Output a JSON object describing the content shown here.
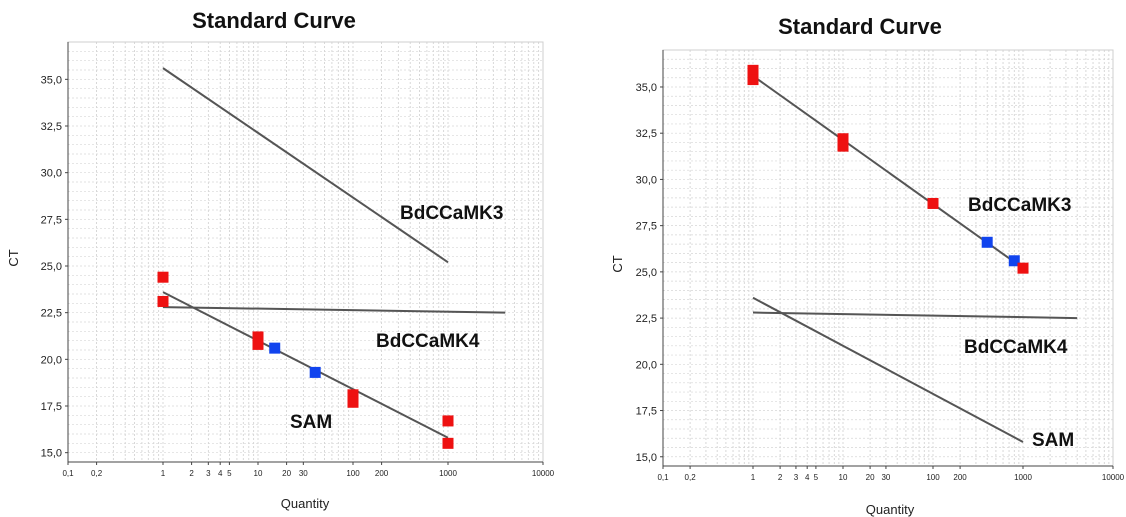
{
  "charts": [
    {
      "title": "Standard Curve",
      "xlabel": "Quantity",
      "ylabel": "CT",
      "x_ticks": [
        "0,1",
        "0,2",
        "1",
        "2",
        "3",
        "4",
        "5",
        "10",
        "20",
        "30",
        "100",
        "200",
        "1000",
        "10000"
      ],
      "y_ticks": [
        "15,0",
        "17,5",
        "20,0",
        "22,5",
        "25,0",
        "27,5",
        "30,0",
        "32,5",
        "35,0"
      ],
      "series_labels": [
        "BdCCaMK3",
        "BdCCaMK4",
        "SAM"
      ]
    },
    {
      "title": "Standard Curve",
      "xlabel": "Quantity",
      "ylabel": "CT",
      "x_ticks": [
        "0,1",
        "0,2",
        "1",
        "2",
        "3",
        "4",
        "5",
        "10",
        "20",
        "30",
        "100",
        "200",
        "1000",
        "10000"
      ],
      "y_ticks": [
        "15,0",
        "17,5",
        "20,0",
        "22,5",
        "25,0",
        "27,5",
        "30,0",
        "32,5",
        "35,0"
      ],
      "series_labels": [
        "BdCCaMK3",
        "BdCCaMK4",
        "SAM"
      ]
    }
  ],
  "chart_data": [
    {
      "type": "scatter",
      "title": "Standard Curve",
      "xlabel": "Quantity",
      "ylabel": "CT",
      "x_scale": "log",
      "xlim": [
        0.1,
        10000
      ],
      "ylim": [
        14.5,
        37.0
      ],
      "grid": true,
      "lines": [
        {
          "name": "BdCCaMK3",
          "points": [
            [
              1,
              35.6
            ],
            [
              1000,
              25.2
            ]
          ]
        },
        {
          "name": "BdCCaMK4",
          "points": [
            [
              1,
              22.8
            ],
            [
              4000,
              22.5
            ]
          ]
        },
        {
          "name": "SAM",
          "points": [
            [
              1,
              23.6
            ],
            [
              1000,
              15.8
            ]
          ]
        }
      ],
      "points": [
        {
          "x": 1,
          "y": 24.4,
          "color": "#ee1111"
        },
        {
          "x": 1,
          "y": 23.1,
          "color": "#ee1111"
        },
        {
          "x": 10,
          "y": 21.2,
          "color": "#ee1111"
        },
        {
          "x": 10,
          "y": 20.8,
          "color": "#ee1111"
        },
        {
          "x": 15,
          "y": 20.6,
          "color": "#1144ee"
        },
        {
          "x": 40,
          "y": 19.3,
          "color": "#1144ee"
        },
        {
          "x": 100,
          "y": 18.1,
          "color": "#ee1111"
        },
        {
          "x": 100,
          "y": 17.7,
          "color": "#ee1111"
        },
        {
          "x": 1000,
          "y": 16.7,
          "color": "#ee1111"
        },
        {
          "x": 1000,
          "y": 15.5,
          "color": "#ee1111"
        }
      ],
      "colors": {
        "standard": "#ee1111",
        "unknown": "#1144ee",
        "line": "#555555"
      }
    },
    {
      "type": "scatter",
      "title": "Standard Curve",
      "xlabel": "Quantity",
      "ylabel": "CT",
      "x_scale": "log",
      "xlim": [
        0.1,
        10000
      ],
      "ylim": [
        14.5,
        37.0
      ],
      "grid": true,
      "lines": [
        {
          "name": "BdCCaMK3",
          "points": [
            [
              1,
              35.6
            ],
            [
              1000,
              25.2
            ]
          ]
        },
        {
          "name": "BdCCaMK4",
          "points": [
            [
              1,
              22.8
            ],
            [
              4000,
              22.5
            ]
          ]
        },
        {
          "name": "SAM",
          "points": [
            [
              1,
              23.6
            ],
            [
              1000,
              15.8
            ]
          ]
        }
      ],
      "points": [
        {
          "x": 1,
          "y": 35.9,
          "color": "#ee1111"
        },
        {
          "x": 1,
          "y": 35.4,
          "color": "#ee1111"
        },
        {
          "x": 10,
          "y": 32.2,
          "color": "#ee1111"
        },
        {
          "x": 10,
          "y": 31.8,
          "color": "#ee1111"
        },
        {
          "x": 100,
          "y": 28.7,
          "color": "#ee1111"
        },
        {
          "x": 400,
          "y": 26.6,
          "color": "#1144ee"
        },
        {
          "x": 800,
          "y": 25.6,
          "color": "#1144ee"
        },
        {
          "x": 1000,
          "y": 25.2,
          "color": "#ee1111"
        }
      ],
      "colors": {
        "standard": "#ee1111",
        "unknown": "#1144ee",
        "line": "#555555"
      }
    }
  ]
}
